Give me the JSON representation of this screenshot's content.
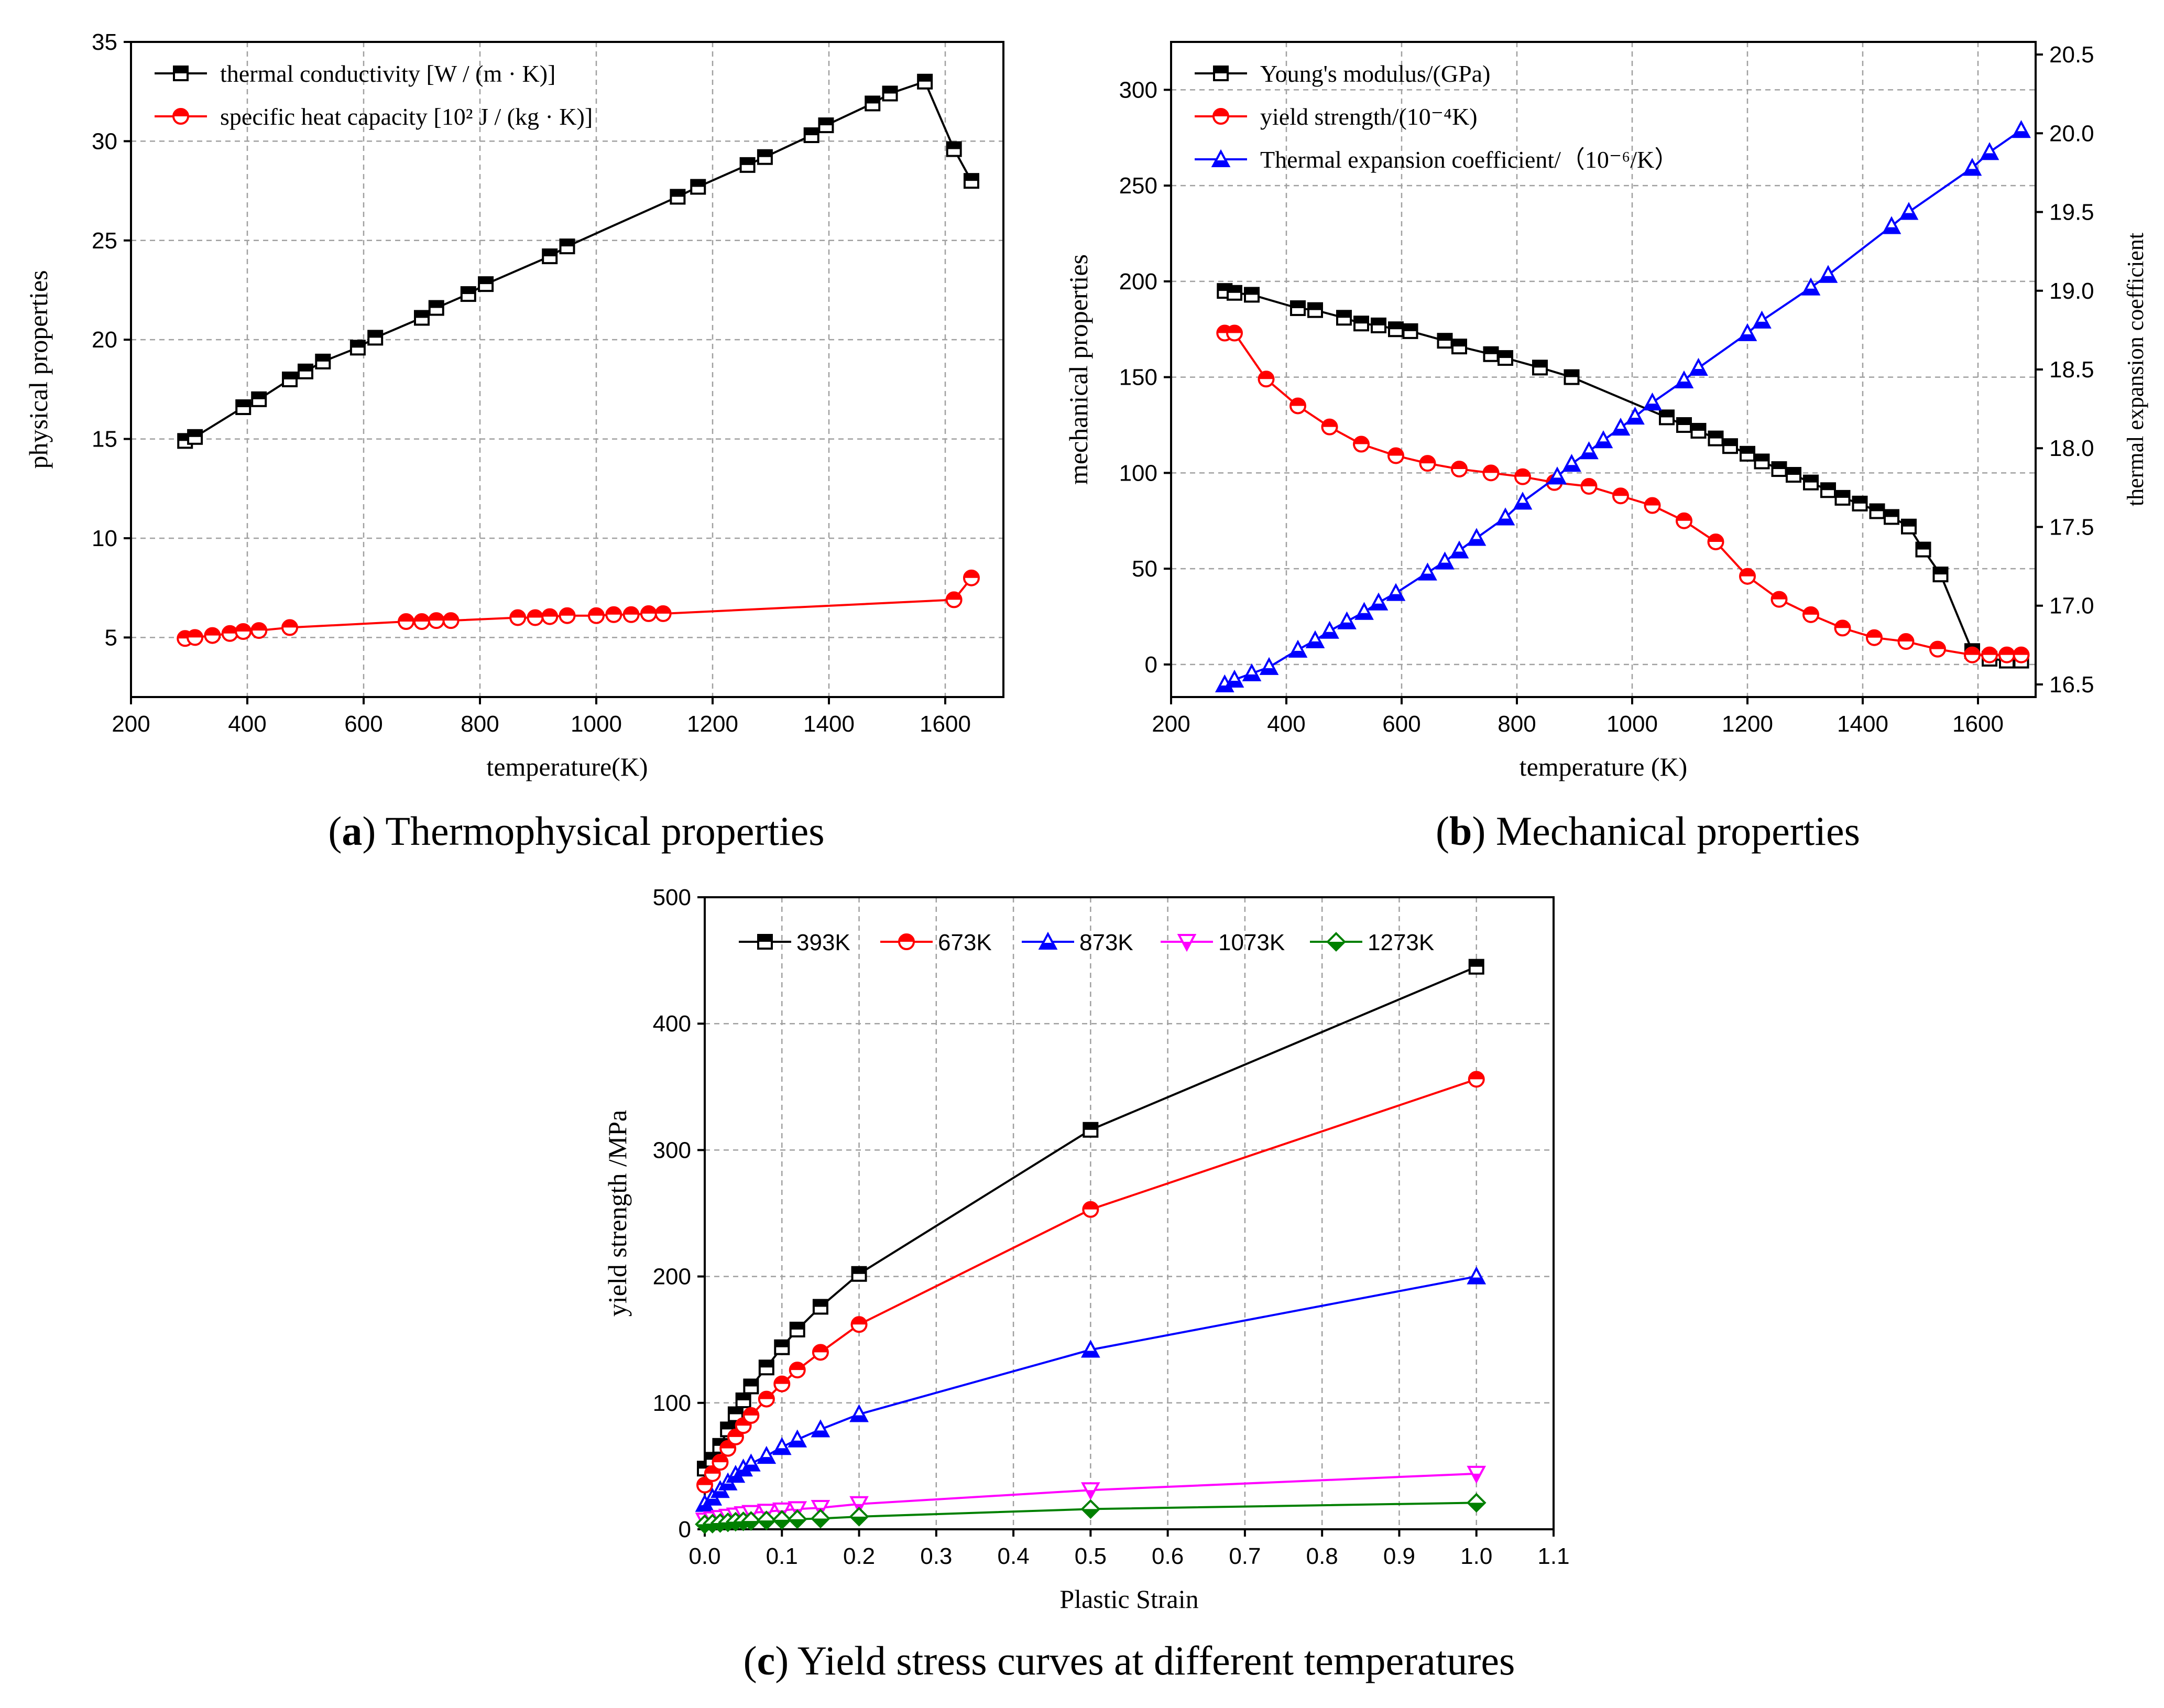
{
  "chart_data": [
    {
      "type": "line",
      "panel": "a",
      "caption_letter": "a",
      "caption_text": " Thermophysical properties",
      "xlabel": "temperature(K)",
      "ylabel": "physical properties",
      "xlim": [
        200,
        1700
      ],
      "ylim": [
        2,
        35
      ],
      "xticks": [
        200,
        400,
        600,
        800,
        1000,
        1200,
        1400,
        1600
      ],
      "yticks": [
        5,
        10,
        15,
        20,
        25,
        30,
        35
      ],
      "legend_position": "top-left",
      "series": [
        {
          "name": "thermal conductivity [W/(m·K)]",
          "legend_text": "thermal conductivity [W / (m · K)]",
          "color": "#000000",
          "marker": "square",
          "x": [
            293,
            310,
            393,
            420,
            473,
            500,
            530,
            590,
            620,
            700,
            725,
            780,
            810,
            920,
            950,
            1140,
            1175,
            1260,
            1290,
            1370,
            1395,
            1475,
            1505,
            1565,
            1615,
            1645
          ],
          "y": [
            14.9,
            15.1,
            16.6,
            17.0,
            18.0,
            18.4,
            18.9,
            19.6,
            20.1,
            21.1,
            21.6,
            22.3,
            22.8,
            24.2,
            24.7,
            27.2,
            27.7,
            28.8,
            29.2,
            30.3,
            30.8,
            31.9,
            32.4,
            33.0,
            29.6,
            28.0
          ]
        },
        {
          "name": "specific heat capacity [10² J/(kg·K)]",
          "legend_text": "specific heat capacity [10² J / (kg · K)]",
          "color": "#ff0000",
          "marker": "circle",
          "x": [
            293,
            310,
            340,
            370,
            393,
            420,
            473,
            673,
            700,
            725,
            750,
            865,
            895,
            920,
            950,
            1000,
            1030,
            1060,
            1090,
            1115,
            1615,
            1645
          ],
          "y": [
            4.95,
            5.0,
            5.1,
            5.2,
            5.3,
            5.35,
            5.5,
            5.8,
            5.8,
            5.85,
            5.85,
            6.0,
            6.0,
            6.05,
            6.1,
            6.1,
            6.15,
            6.15,
            6.2,
            6.2,
            6.9,
            8.0
          ]
        }
      ]
    },
    {
      "type": "line",
      "panel": "b",
      "caption_letter": "b",
      "caption_text": " Mechanical properties",
      "xlabel": "temperature (K)",
      "ylabel": "mechanical properties",
      "y2label": "thermal expansion coefficient",
      "xlim": [
        200,
        1700
      ],
      "ylim": [
        -17,
        325
      ],
      "y2lim": [
        16.42,
        20.58
      ],
      "xticks": [
        200,
        400,
        600,
        800,
        1000,
        1200,
        1400,
        1600
      ],
      "yticks": [
        0,
        50,
        100,
        150,
        200,
        250,
        300
      ],
      "y2ticks": [
        "16.5",
        "17.0",
        "17.5",
        "18.0",
        "18.5",
        "19.0",
        "19.5",
        "20.0",
        "20.5"
      ],
      "legend_position": "top-left",
      "series": [
        {
          "name": "Young's modulus/(GPa)",
          "legend_text": "Young's modulus/(GPa)",
          "color": "#000000",
          "marker": "square",
          "axis": "left",
          "x": [
            293,
            310,
            340,
            420,
            450,
            500,
            530,
            560,
            590,
            615,
            675,
            700,
            755,
            780,
            840,
            895,
            1060,
            1090,
            1115,
            1145,
            1170,
            1200,
            1225,
            1255,
            1280,
            1310,
            1340,
            1365,
            1395,
            1425,
            1450,
            1480,
            1505,
            1535,
            1590,
            1620,
            1650,
            1675
          ],
          "y": [
            195,
            194,
            193,
            186,
            185,
            181,
            178,
            177,
            175,
            174,
            169,
            166,
            162,
            160,
            155,
            150,
            129,
            125,
            122,
            118,
            114,
            110,
            106,
            102,
            99,
            95,
            91,
            87,
            84,
            80,
            77,
            72,
            60,
            47,
            7,
            3,
            2,
            2
          ]
        },
        {
          "name": "yield strength/(10⁻⁴K)",
          "legend_text": "yield strength/(10⁻⁴K)",
          "color": "#ff0000",
          "marker": "circle",
          "axis": "left",
          "x": [
            293,
            310,
            365,
            420,
            475,
            530,
            590,
            645,
            700,
            755,
            810,
            865,
            925,
            980,
            1035,
            1090,
            1145,
            1200,
            1255,
            1310,
            1365,
            1420,
            1475,
            1530,
            1590,
            1620,
            1650,
            1675
          ],
          "y": [
            173,
            173,
            149,
            135,
            124,
            115,
            109,
            105,
            102,
            100,
            98,
            95,
            93,
            88,
            83,
            75,
            64,
            46,
            34,
            26,
            19,
            14,
            12,
            8,
            5,
            5,
            5,
            5
          ]
        },
        {
          "name": "Thermal expansion coefficient/（10⁻⁶/K）",
          "legend_text": "Thermal expansion coefficient/（10⁻⁶/K）",
          "color": "#0000ff",
          "marker": "triangle",
          "axis": "right",
          "x": [
            293,
            310,
            340,
            370,
            420,
            450,
            475,
            505,
            535,
            560,
            590,
            645,
            675,
            700,
            730,
            780,
            810,
            870,
            895,
            925,
            950,
            980,
            1005,
            1035,
            1090,
            1115,
            1200,
            1225,
            1310,
            1340,
            1450,
            1480,
            1590,
            1620,
            1675
          ],
          "y": [
            16.5,
            16.53,
            16.57,
            16.61,
            16.72,
            16.78,
            16.84,
            16.9,
            16.96,
            17.02,
            17.08,
            17.21,
            17.28,
            17.35,
            17.43,
            17.56,
            17.66,
            17.82,
            17.9,
            17.98,
            18.05,
            18.13,
            18.2,
            18.29,
            18.43,
            18.51,
            18.73,
            18.81,
            19.02,
            19.1,
            19.41,
            19.5,
            19.78,
            19.88,
            20.02
          ]
        }
      ]
    },
    {
      "type": "line",
      "panel": "c",
      "caption_letter": "c",
      "caption_text": " Yield stress curves at different temperatures",
      "xlabel": "Plastic Strain",
      "ylabel": "yield strength /MPa",
      "xlim": [
        0,
        1.1
      ],
      "ylim": [
        0,
        500
      ],
      "xticks": [
        "0.0",
        "0.1",
        "0.2",
        "0.3",
        "0.4",
        "0.5",
        "0.6",
        "0.7",
        "0.8",
        "0.9",
        "1.0",
        "1.1"
      ],
      "yticks": [
        0,
        100,
        200,
        300,
        400,
        500
      ],
      "legend_position": "top",
      "series": [
        {
          "name": "393K",
          "color": "#000000",
          "marker": "square",
          "x": [
            0,
            0.01,
            0.02,
            0.03,
            0.04,
            0.05,
            0.06,
            0.08,
            0.1,
            0.12,
            0.15,
            0.2,
            0.5,
            1.0
          ],
          "y": [
            48,
            55,
            66,
            79,
            91,
            102,
            113,
            128,
            144,
            158,
            176,
            202,
            316,
            445
          ]
        },
        {
          "name": "673K",
          "color": "#ff0000",
          "marker": "circle",
          "x": [
            0,
            0.01,
            0.02,
            0.03,
            0.04,
            0.05,
            0.06,
            0.08,
            0.1,
            0.12,
            0.15,
            0.2,
            0.5,
            1.0
          ],
          "y": [
            35,
            44,
            53,
            64,
            73,
            82,
            90,
            103,
            115,
            126,
            140,
            162,
            253,
            356
          ]
        },
        {
          "name": "873K",
          "color": "#0000ff",
          "marker": "triangle",
          "x": [
            0,
            0.01,
            0.02,
            0.03,
            0.04,
            0.05,
            0.06,
            0.08,
            0.1,
            0.12,
            0.15,
            0.2,
            0.5,
            1.0
          ],
          "y": [
            20,
            25,
            31,
            37,
            43,
            48,
            52,
            58,
            65,
            71,
            79,
            91,
            142,
            200
          ]
        },
        {
          "name": "1073K",
          "color": "#ff00ff",
          "marker": "triangle-down",
          "x": [
            0,
            0.01,
            0.02,
            0.03,
            0.04,
            0.05,
            0.06,
            0.08,
            0.1,
            0.12,
            0.15,
            0.2,
            0.5,
            1.0
          ],
          "y": [
            7,
            8,
            9,
            10,
            11,
            12,
            13,
            14,
            15,
            16,
            17,
            20,
            31,
            44
          ]
        },
        {
          "name": "1273K",
          "color": "#008000",
          "marker": "diamond",
          "x": [
            0,
            0.01,
            0.02,
            0.03,
            0.04,
            0.05,
            0.06,
            0.08,
            0.1,
            0.12,
            0.15,
            0.2,
            0.5,
            1.0
          ],
          "y": [
            4,
            4.5,
            5,
            5.5,
            6,
            6.3,
            6.6,
            7,
            7.5,
            8,
            8.5,
            10,
            16,
            21
          ]
        }
      ]
    }
  ]
}
